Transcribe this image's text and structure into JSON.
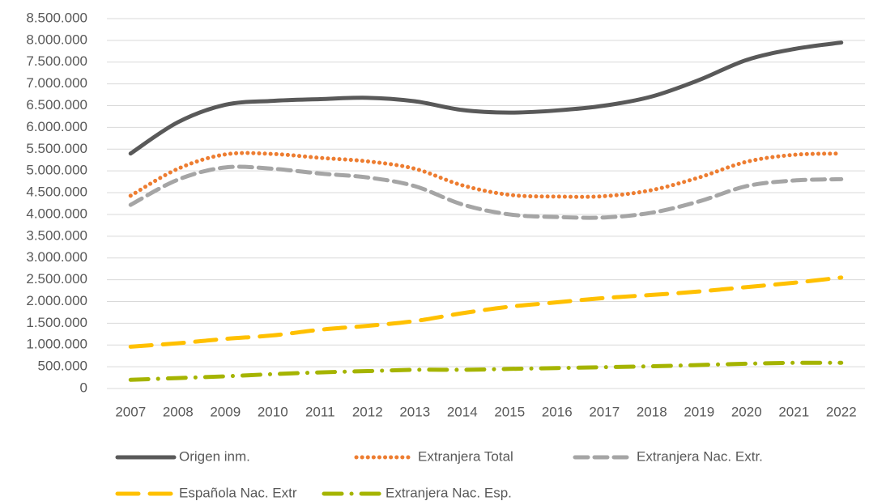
{
  "chart_data": {
    "type": "line",
    "categories": [
      "2007",
      "2008",
      "2009",
      "2010",
      "2011",
      "2012",
      "2013",
      "2014",
      "2015",
      "2016",
      "2017",
      "2018",
      "2019",
      "2020",
      "2021",
      "2022"
    ],
    "series": [
      {
        "name": "Origen inm.",
        "color": "#595959",
        "line_style": "solid",
        "values": [
          5400000,
          6120000,
          6520000,
          6610000,
          6650000,
          6680000,
          6600000,
          6400000,
          6340000,
          6390000,
          6500000,
          6710000,
          7090000,
          7550000,
          7800000,
          7950000
        ]
      },
      {
        "name": "Extranjera Total",
        "color": "#ed7d31",
        "line_style": "dotted",
        "values": [
          4430000,
          5050000,
          5380000,
          5390000,
          5300000,
          5220000,
          5050000,
          4670000,
          4450000,
          4410000,
          4420000,
          4560000,
          4850000,
          5210000,
          5370000,
          5400000
        ]
      },
      {
        "name": "Extranjera Nac. Extr.",
        "color": "#a5a5a5",
        "line_style": "dashed",
        "values": [
          4220000,
          4800000,
          5080000,
          5050000,
          4940000,
          4850000,
          4650000,
          4230000,
          4000000,
          3940000,
          3930000,
          4040000,
          4300000,
          4650000,
          4780000,
          4810000
        ]
      },
      {
        "name": "Española Nac. Extr",
        "color": "#ffc000",
        "line_style": "long-dash",
        "values": [
          960000,
          1040000,
          1140000,
          1220000,
          1350000,
          1440000,
          1550000,
          1730000,
          1880000,
          1980000,
          2080000,
          2150000,
          2230000,
          2330000,
          2430000,
          2550000
        ]
      },
      {
        "name": "Extranjera Nac. Esp.",
        "color": "#a5b400",
        "line_style": "dash-dot",
        "values": [
          200000,
          240000,
          280000,
          330000,
          370000,
          400000,
          430000,
          430000,
          450000,
          470000,
          490000,
          510000,
          540000,
          570000,
          590000,
          590000
        ]
      }
    ],
    "ylim": [
      0,
      8500000
    ],
    "yticks": [
      0,
      {
        "value": 500000,
        "label": "500.000"
      },
      {
        "value": 1000000,
        "label": "1.000.000"
      },
      {
        "value": 1500000,
        "label": "1.500.000"
      },
      {
        "value": 2000000,
        "label": "2.000.000"
      },
      {
        "value": 2500000,
        "label": "2.500.000"
      },
      {
        "value": 3000000,
        "label": "3.000.000"
      },
      {
        "value": 3500000,
        "label": "3.500.000"
      },
      {
        "value": 4000000,
        "label": "4.000.000"
      },
      {
        "value": 4500000,
        "label": "4.500.000"
      },
      {
        "value": 5000000,
        "label": "5.000.000"
      },
      {
        "value": 5500000,
        "label": "5.500.000"
      },
      {
        "value": 6000000,
        "label": "6.000.000"
      },
      {
        "value": 6500000,
        "label": "6.500.000"
      },
      {
        "value": 7000000,
        "label": "7.000.000"
      },
      {
        "value": 7500000,
        "label": "7.500.000"
      },
      {
        "value": 8000000,
        "label": "8.000.000"
      },
      {
        "value": 8500000,
        "label": "8.500.000"
      }
    ],
    "grid": true,
    "smooth": true,
    "legend": "bottom"
  }
}
